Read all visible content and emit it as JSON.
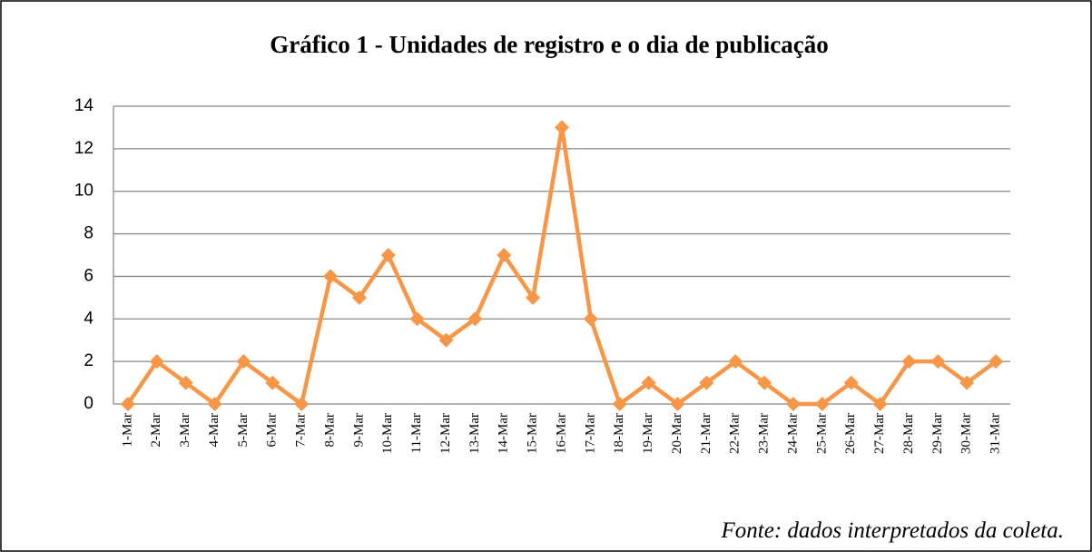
{
  "chart_data": {
    "type": "line",
    "title": "Gráfico 1 - Unidades de registro e o dia de publicação",
    "source": "Fonte: dados interpretados da coleta.",
    "categories": [
      "1-Mar",
      "2-Mar",
      "3-Mar",
      "4-Mar",
      "5-Mar",
      "6-Mar",
      "7-Mar",
      "8-Mar",
      "9-Mar",
      "10-Mar",
      "11-Mar",
      "12-Mar",
      "13-Mar",
      "14-Mar",
      "15-Mar",
      "16-Mar",
      "17-Mar",
      "18-Mar",
      "19-Mar",
      "20-Mar",
      "21-Mar",
      "22-Mar",
      "23-Mar",
      "24-Mar",
      "25-Mar",
      "26-Mar",
      "27-Mar",
      "28-Mar",
      "29-Mar",
      "30-Mar",
      "31-Mar"
    ],
    "series": [
      {
        "color": "#f79646",
        "values": [
          0,
          2,
          1,
          0,
          2,
          1,
          0,
          6,
          5,
          7,
          4,
          3,
          4,
          7,
          5,
          13,
          4,
          0,
          1,
          0,
          1,
          2,
          1,
          0,
          0,
          1,
          0,
          2,
          2,
          1,
          2
        ]
      }
    ],
    "ylim": [
      0,
      14
    ],
    "yticks": [
      0,
      2,
      4,
      6,
      8,
      10,
      12,
      14
    ],
    "grid": true
  }
}
